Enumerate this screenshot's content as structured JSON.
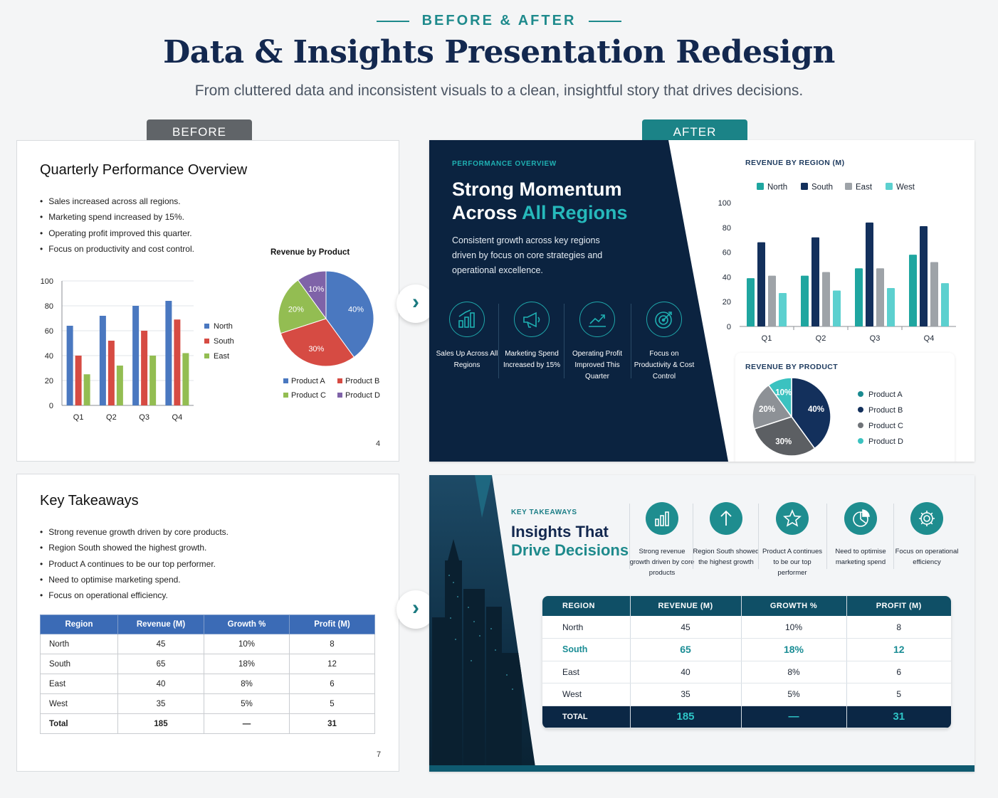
{
  "header": {
    "eyebrow": "BEFORE & AFTER",
    "title": "Data & Insights Presentation Redesign",
    "subtitle": "From cluttered data and inconsistent visuals to a clean, insightful story that drives decisions."
  },
  "tags": {
    "before": "BEFORE",
    "after": "AFTER"
  },
  "before_slide1": {
    "title": "Quarterly Performance Overview",
    "bullets": [
      "Sales increased across all regions.",
      "Marketing spend increased by 15%.",
      "Operating profit improved this quarter.",
      "Focus on productivity and cost control."
    ],
    "page_number": "4",
    "pie_title": "Revenue by Product"
  },
  "before_slide2": {
    "title": "Key Takeaways",
    "bullets": [
      "Strong revenue growth driven by core products.",
      "Region South showed the highest growth.",
      "Product A continues to be our top performer.",
      "Need to optimise marketing spend.",
      "Focus on operational efficiency."
    ],
    "page_number": "7",
    "table_headers": [
      "Region",
      "Revenue (M)",
      "Growth %",
      "Profit (M)"
    ],
    "table_rows": [
      [
        "North",
        "45",
        "10%",
        "8"
      ],
      [
        "South",
        "65",
        "18%",
        "12"
      ],
      [
        "East",
        "40",
        "8%",
        "6"
      ],
      [
        "West",
        "35",
        "5%",
        "5"
      ],
      [
        "Total",
        "185",
        "—",
        "31"
      ]
    ]
  },
  "after_slide1": {
    "eyebrow": "PERFORMANCE OVERVIEW",
    "headline_1": "Strong Momentum",
    "headline_2a": "Across ",
    "headline_2b": "All Regions",
    "body": "Consistent growth across key regions driven by focus on core strategies and operational excellence.",
    "features": [
      {
        "icon": "bar-growth-icon",
        "label": "Sales Up Across All Regions"
      },
      {
        "icon": "megaphone-icon",
        "label": "Marketing Spend Increased by 15%"
      },
      {
        "icon": "trend-up-icon",
        "label": "Operating Profit Improved This Quarter"
      },
      {
        "icon": "target-icon",
        "label": "Focus on Productivity & Cost Control"
      }
    ],
    "bar_title": "REVENUE BY REGION (M)",
    "pie_title": "REVENUE BY PRODUCT"
  },
  "after_slide2": {
    "eyebrow": "KEY TAKEAWAYS",
    "headline_1": "Insights That",
    "headline_2": "Drive Decisions",
    "items": [
      {
        "icon": "bar-chart-icon",
        "label": "Strong revenue growth driven by core products"
      },
      {
        "icon": "arrow-up-icon",
        "label": "Region South showed the highest growth"
      },
      {
        "icon": "star-icon",
        "label": "Product A continues to be our top performer"
      },
      {
        "icon": "pie-icon",
        "label": "Need to optimise marketing spend"
      },
      {
        "icon": "gear-icon",
        "label": "Focus on operational efficiency"
      }
    ],
    "table_headers": [
      "REGION",
      "REVENUE (M)",
      "GROWTH %",
      "PROFIT (M)"
    ],
    "table_rows": [
      [
        "North",
        "45",
        "10%",
        "8"
      ],
      [
        "South",
        "65",
        "18%",
        "12"
      ],
      [
        "East",
        "40",
        "8%",
        "6"
      ],
      [
        "West",
        "35",
        "5%",
        "5"
      ]
    ],
    "table_total": [
      "TOTAL",
      "185",
      "—",
      "31"
    ]
  },
  "colors": {
    "navy": "#0b2340",
    "teal": "#1e8a8c",
    "before_blue": "#4a78c0",
    "before_red": "#d64b43",
    "before_green": "#93bd52",
    "before_purple": "#7f63a8"
  },
  "chart_data": [
    {
      "type": "bar",
      "title": "",
      "categories": [
        "Q1",
        "Q2",
        "Q3",
        "Q4"
      ],
      "series": [
        {
          "name": "North",
          "values": [
            64,
            72,
            80,
            84
          ]
        },
        {
          "name": "South",
          "values": [
            40,
            52,
            60,
            69
          ]
        },
        {
          "name": "East",
          "values": [
            25,
            32,
            40,
            42
          ]
        }
      ],
      "ylim": [
        0,
        100
      ],
      "yticks": [
        "0",
        "20",
        "40",
        "60",
        "80",
        "100"
      ],
      "legend": "right",
      "grid": true
    },
    {
      "type": "pie",
      "title": "Revenue by Product",
      "labels": [
        "Product A",
        "Product B",
        "Product C",
        "Product D"
      ],
      "values": [
        40,
        30,
        20,
        10
      ],
      "value_labels": [
        "40%",
        "30%",
        "20%",
        "10%"
      ],
      "legend": "bottom"
    },
    {
      "type": "bar",
      "title": "REVENUE BY REGION (M)",
      "categories": [
        "Q1",
        "Q2",
        "Q3",
        "Q4"
      ],
      "series": [
        {
          "name": "North",
          "values": [
            39,
            41,
            47,
            58
          ]
        },
        {
          "name": "South",
          "values": [
            68,
            72,
            84,
            81
          ]
        },
        {
          "name": "East",
          "values": [
            41,
            44,
            47,
            52
          ]
        },
        {
          "name": "West",
          "values": [
            27,
            29,
            31,
            35
          ]
        }
      ],
      "ylim": [
        0,
        100
      ],
      "yticks": [
        "0",
        "20",
        "40",
        "60",
        "80",
        "100"
      ],
      "legend": "top",
      "grid": false
    },
    {
      "type": "pie",
      "title": "REVENUE BY PRODUCT",
      "labels": [
        "Product A",
        "Product B",
        "Product C",
        "Product D"
      ],
      "values": [
        40,
        30,
        20,
        10
      ],
      "value_labels": [
        "40%",
        "30%",
        "20%",
        "10%"
      ],
      "legend": "right"
    }
  ]
}
